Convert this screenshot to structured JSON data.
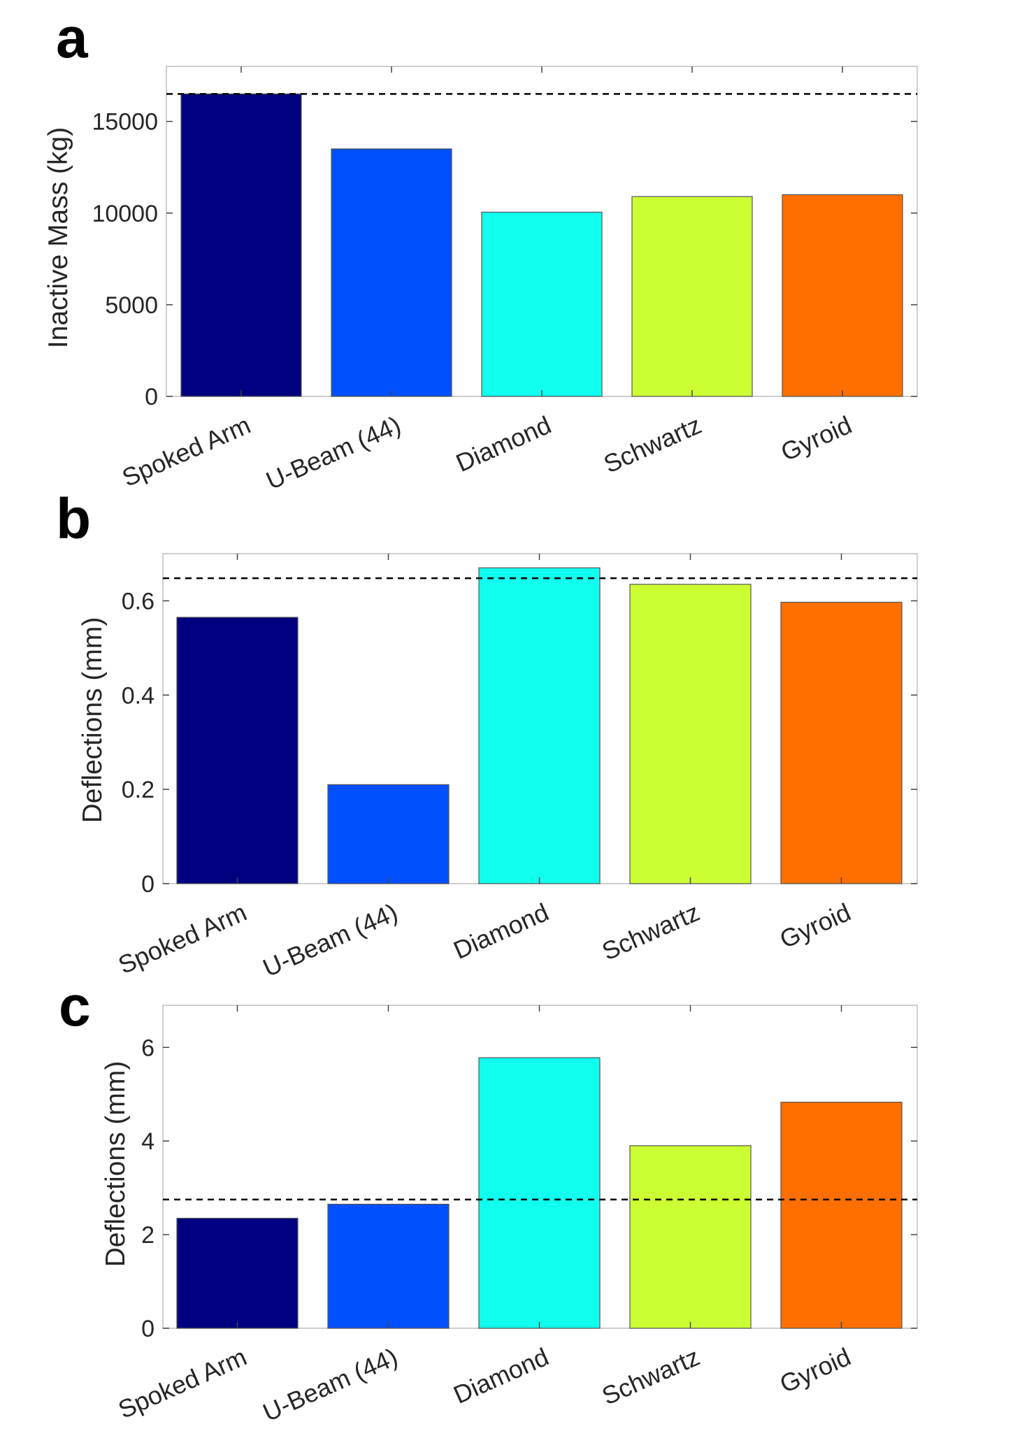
{
  "figure": {
    "colors": {
      "Spoked Arm": "#000080",
      "U-Beam (44)": "#0050FF",
      "Diamond": "#10FFEE",
      "Schwartz": "#CCFF33",
      "Gyroid": "#FF6F00"
    },
    "reference_line_color": "#000000"
  },
  "chart_data": [
    {
      "panel": "a",
      "type": "bar",
      "categories": [
        "Spoked Arm",
        "U-Beam (44)",
        "Diamond",
        "Schwartz",
        "Gyroid"
      ],
      "values": [
        16500,
        13500,
        10050,
        10900,
        11000
      ],
      "xlabel": "",
      "ylabel": "Inactive Mass (kg)",
      "ylim": [
        0,
        18000
      ],
      "yticks": [
        0,
        5000,
        10000,
        15000
      ],
      "ytick_labels": [
        "0",
        "5000",
        "10000",
        "15000"
      ],
      "reference_line": 16500,
      "reference_style": "dashed",
      "grid": false
    },
    {
      "panel": "b",
      "type": "bar",
      "categories": [
        "Spoked Arm",
        "U-Beam (44)",
        "Diamond",
        "Schwartz",
        "Gyroid"
      ],
      "values": [
        0.565,
        0.21,
        0.67,
        0.635,
        0.597
      ],
      "xlabel": "",
      "ylabel": "Deflections (mm)",
      "ylim": [
        0,
        0.7
      ],
      "yticks": [
        0,
        0.2,
        0.4,
        0.6
      ],
      "ytick_labels": [
        "0",
        "0.2",
        "0.4",
        "0.6"
      ],
      "reference_line": 0.648,
      "reference_style": "dashed",
      "grid": false
    },
    {
      "panel": "c",
      "type": "bar",
      "categories": [
        "Spoked Arm",
        "U-Beam (44)",
        "Diamond",
        "Schwartz",
        "Gyroid"
      ],
      "values": [
        2.35,
        2.65,
        5.78,
        3.9,
        4.83
      ],
      "xlabel": "",
      "ylabel": "Deflections (mm)",
      "ylim": [
        0,
        6.9
      ],
      "yticks": [
        0,
        2,
        4,
        6
      ],
      "ytick_labels": [
        "0",
        "2",
        "4",
        "6"
      ],
      "reference_line": 2.75,
      "reference_style": "dashed",
      "grid": false
    }
  ]
}
